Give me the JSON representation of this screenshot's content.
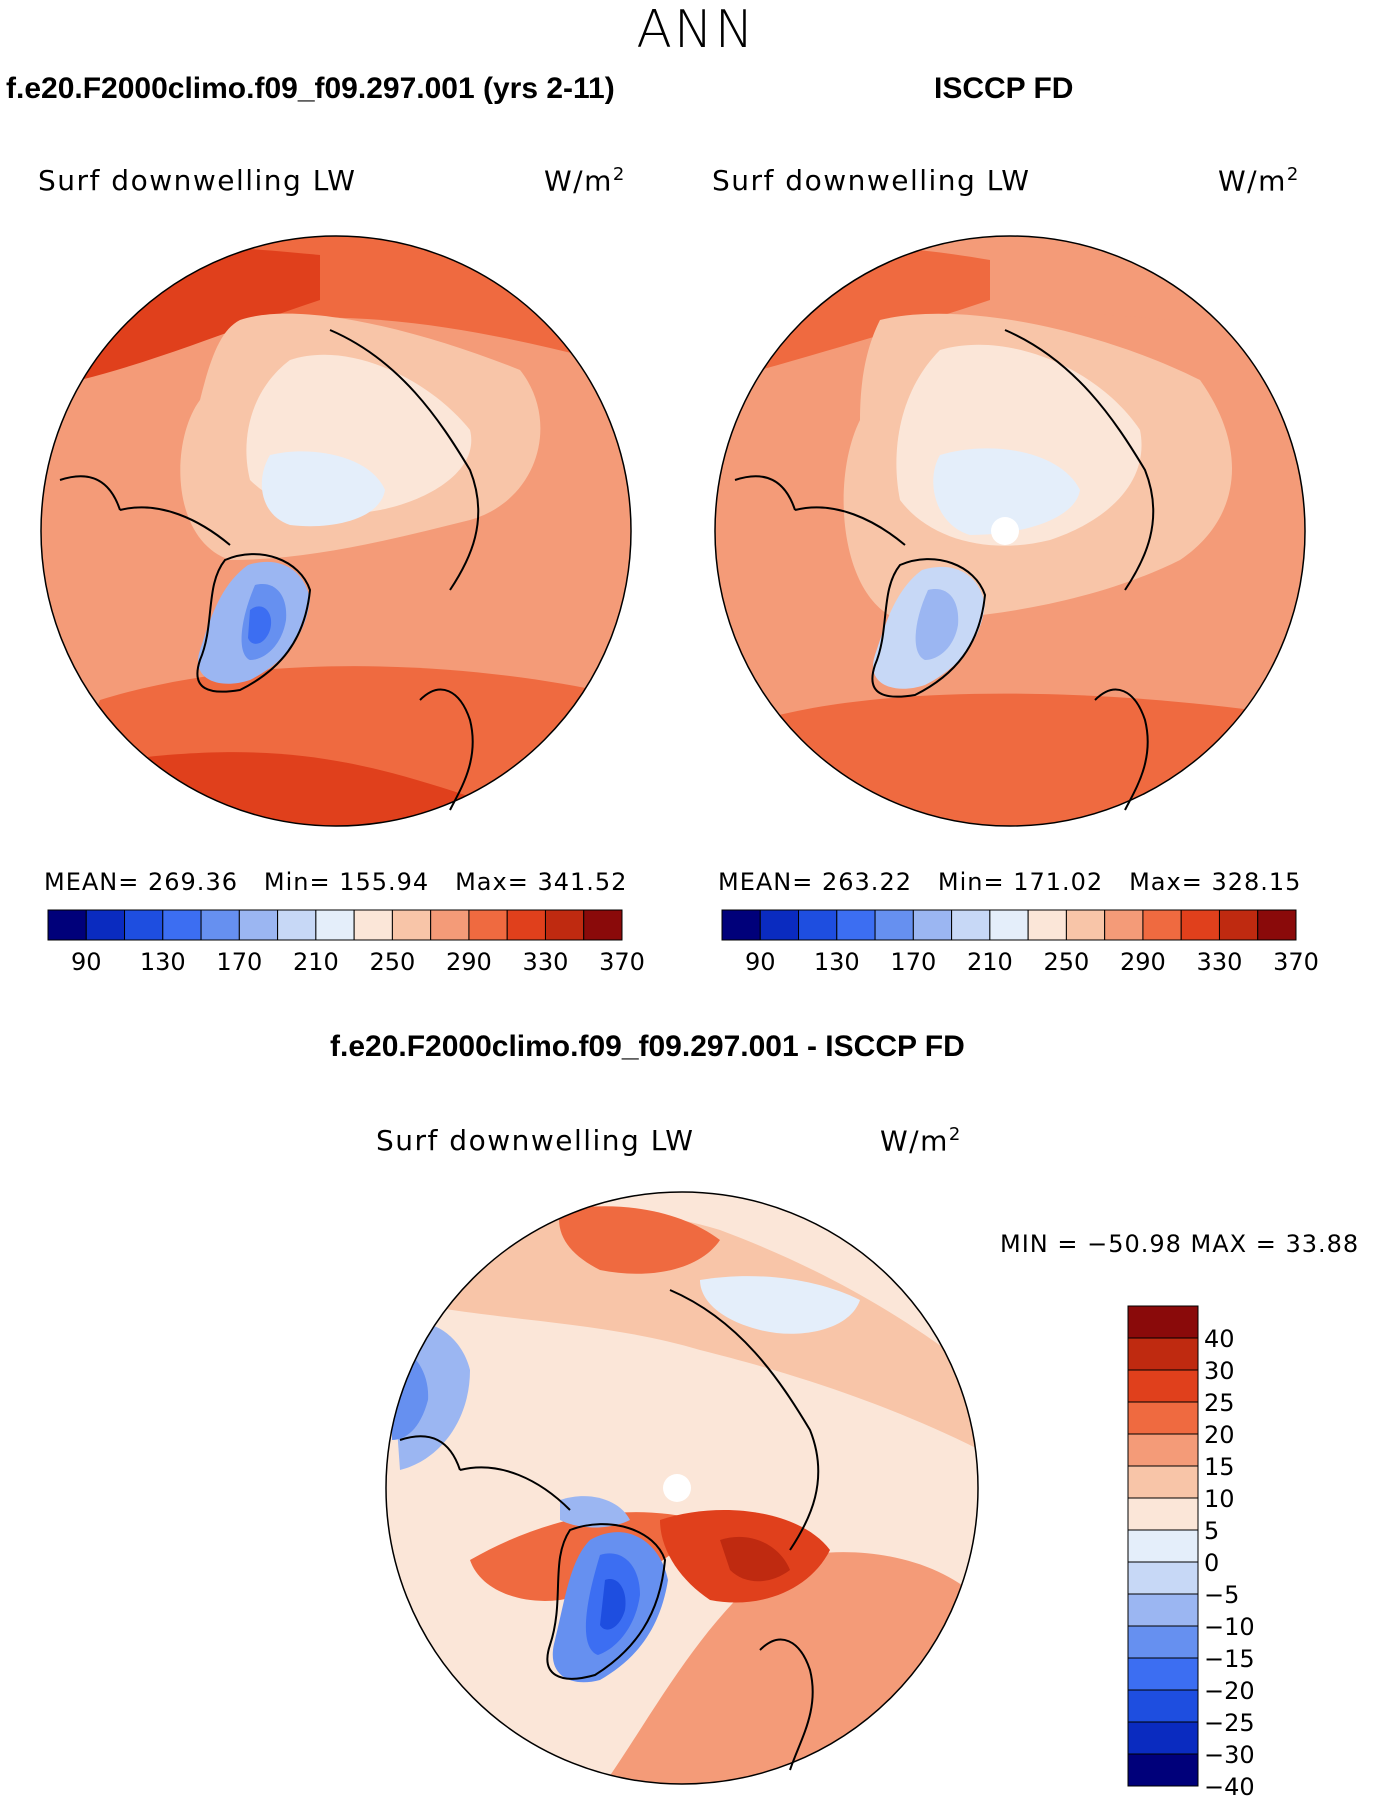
{
  "title": "ANN",
  "panels": [
    {
      "id": "model",
      "case_title": "f.e20.F2000climo.f09_f09.297.001 (yrs 2-11)",
      "variable": "Surf downwelling LW",
      "units": "W/m",
      "units_sup": "2",
      "stats": {
        "mean_label": "MEAN=",
        "mean": "269.36",
        "min_label": "Min=",
        "min": "155.94",
        "max_label": "Max=",
        "max": "341.52"
      }
    },
    {
      "id": "obs",
      "case_title": "ISCCP FD",
      "variable": "Surf downwelling LW",
      "units": "W/m",
      "units_sup": "2",
      "stats": {
        "mean_label": "MEAN=",
        "mean": "263.22",
        "min_label": "Min=",
        "min": "171.02",
        "max_label": "Max=",
        "max": "328.15"
      }
    }
  ],
  "abs_colorbar": {
    "ticks": [
      "90",
      "130",
      "170",
      "210",
      "250",
      "290",
      "330",
      "370"
    ],
    "colors": [
      "#00007a",
      "#0a2bc0",
      "#1e4ee0",
      "#3c6ef2",
      "#6690f0",
      "#9bb6f2",
      "#c7d8f6",
      "#e4eefa",
      "#fbe6d8",
      "#f8c5a8",
      "#f49b78",
      "#ef6a40",
      "#e0401c",
      "#bf2a10",
      "#8a0a0a"
    ]
  },
  "diff_panel": {
    "title": "f.e20.F2000climo.f09_f09.297.001 - ISCCP FD",
    "variable": "Surf downwelling LW",
    "units": "W/m",
    "units_sup": "2",
    "minmax": "MIN = −50.98 MAX =   33.88"
  },
  "diff_colorbar": {
    "ticks": [
      "40",
      "30",
      "25",
      "20",
      "15",
      "10",
      "5",
      "0",
      "−5",
      "−10",
      "−15",
      "−20",
      "−25",
      "−30",
      "−40"
    ],
    "colors": [
      "#8a0a0a",
      "#bf2a10",
      "#e0401c",
      "#ef6a40",
      "#f49b78",
      "#f8c5a8",
      "#fbe6d8",
      "#e4eefa",
      "#c7d8f6",
      "#9bb6f2",
      "#6690f0",
      "#3c6ef2",
      "#1e4ee0",
      "#0a2bc0",
      "#00007a"
    ]
  }
}
